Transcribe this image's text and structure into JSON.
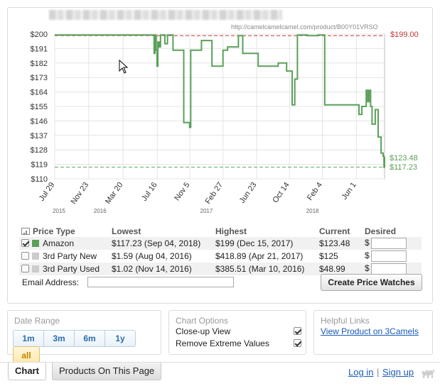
{
  "chart": {
    "url": "http://camelcamelcamel.com/product/B00Y01VRSO",
    "marker_high": "$199.00",
    "marker_current": "$123.48",
    "marker_low": "$117.23"
  },
  "chart_data": {
    "type": "line",
    "y_ticks": [
      "$200",
      "$191",
      "$182",
      "$173",
      "$164",
      "$155",
      "$146",
      "$137",
      "$128",
      "$119",
      "$110"
    ],
    "ylim": [
      110,
      200
    ],
    "x_ticks": [
      "Jul 29",
      "Nov 23",
      "Mar 20",
      "Jul 16",
      "Nov 5",
      "Feb 27",
      "Jun 23",
      "Oct 14",
      "Feb 4",
      "Jun 1"
    ],
    "year_labels": [
      "2015",
      "2016",
      "2017",
      "2018"
    ],
    "reference_lines": [
      {
        "label": "$199.00",
        "value": 199.0,
        "color": "#c33333"
      },
      {
        "label": "$117.23",
        "value": 117.23,
        "color": "#5aae5a"
      }
    ],
    "series": [
      {
        "name": "Amazon",
        "color": "#5aa05a",
        "points": [
          [
            "2015-07-29",
            199.4
          ],
          [
            "2016-07-02",
            199.4
          ],
          [
            "2016-07-05",
            188
          ],
          [
            "2016-07-08",
            199.4
          ],
          [
            "2016-07-12",
            190
          ],
          [
            "2016-07-15",
            180
          ],
          [
            "2016-07-18",
            195
          ],
          [
            "2016-07-22",
            192
          ],
          [
            "2016-07-27",
            199.4
          ],
          [
            "2016-08-08",
            199.4
          ],
          [
            "2016-08-11",
            194
          ],
          [
            "2016-08-20",
            199.4
          ],
          [
            "2016-09-05",
            199.4
          ],
          [
            "2016-09-08",
            190
          ],
          [
            "2016-10-10",
            190
          ],
          [
            "2016-10-15",
            145
          ],
          [
            "2016-11-04",
            142
          ],
          [
            "2016-11-08",
            190
          ],
          [
            "2016-12-10",
            190
          ],
          [
            "2016-12-15",
            196
          ],
          [
            "2017-01-10",
            196
          ],
          [
            "2017-01-20",
            180
          ],
          [
            "2017-02-20",
            180
          ],
          [
            "2017-02-27",
            190
          ],
          [
            "2017-03-15",
            192
          ],
          [
            "2017-04-10",
            192
          ],
          [
            "2017-04-21",
            199
          ],
          [
            "2017-05-03",
            199
          ],
          [
            "2017-05-06",
            188
          ],
          [
            "2017-05-20",
            188
          ],
          [
            "2017-06-22",
            188
          ],
          [
            "2017-06-28",
            180
          ],
          [
            "2017-08-05",
            180
          ],
          [
            "2017-08-25",
            180
          ],
          [
            "2017-09-05",
            182
          ],
          [
            "2017-10-01",
            182
          ],
          [
            "2017-10-04",
            177
          ],
          [
            "2017-10-20",
            177
          ],
          [
            "2017-10-23",
            156
          ],
          [
            "2017-11-01",
            172
          ],
          [
            "2017-11-10",
            199.4
          ],
          [
            "2017-11-20",
            199.4
          ],
          [
            "2017-12-15",
            199
          ],
          [
            "2018-01-05",
            199
          ],
          [
            "2018-01-20",
            199.4
          ],
          [
            "2018-02-10",
            199.4
          ],
          [
            "2018-02-12",
            156
          ],
          [
            "2018-06-01",
            156
          ],
          [
            "2018-06-10",
            150
          ],
          [
            "2018-06-20",
            155
          ],
          [
            "2018-07-05",
            165
          ],
          [
            "2018-07-10",
            158
          ],
          [
            "2018-07-15",
            165
          ],
          [
            "2018-07-20",
            155
          ],
          [
            "2018-07-25",
            144
          ],
          [
            "2018-08-05",
            153
          ],
          [
            "2018-08-15",
            136
          ],
          [
            "2018-08-25",
            126
          ],
          [
            "2018-09-01",
            124
          ],
          [
            "2018-09-04",
            117.23
          ],
          [
            "2018-09-06",
            123.48
          ]
        ]
      }
    ]
  },
  "table": {
    "headers": {
      "price_type": "Price Type",
      "lowest": "Lowest",
      "highest": "Highest",
      "current": "Current",
      "desired": "Desired"
    },
    "rows": [
      {
        "type": "Amazon",
        "lowest": "$117.23 (Sep 04, 2018)",
        "highest": "$199 (Dec 15, 2017)",
        "current": "$123.48",
        "checked": true,
        "swatch": "#5aa05a"
      },
      {
        "type": "3rd Party New",
        "lowest": "$1.59 (Aug 04, 2016)",
        "highest": "$418.89 (Apr 21, 2017)",
        "current": "$125",
        "checked": false,
        "swatch": "#cccccc"
      },
      {
        "type": "3rd Party Used",
        "lowest": "$1.02 (Nov 14, 2016)",
        "highest": "$385.51 (Mar 10, 2016)",
        "current": "$48.99",
        "checked": false,
        "swatch": "#cccccc"
      }
    ],
    "currency_symbol": "$"
  },
  "email": {
    "label": "Email Address:"
  },
  "create_button": "Create Price Watches",
  "date_range": {
    "title": "Date Range",
    "buttons": [
      "1m",
      "3m",
      "6m",
      "1y"
    ],
    "selected": "all"
  },
  "chart_options": {
    "title": "Chart Options",
    "options": [
      {
        "label": "Close-up View",
        "checked": true
      },
      {
        "label": "Remove Extreme Values",
        "checked": true
      }
    ]
  },
  "helpful_links": {
    "title": "Helpful Links",
    "link": "View Product on 3Camels"
  },
  "tabs": {
    "chart": "Chart",
    "products": "Products On This Page"
  },
  "footer": {
    "login": "Log in",
    "separator": "|",
    "signup": "Sign up"
  }
}
